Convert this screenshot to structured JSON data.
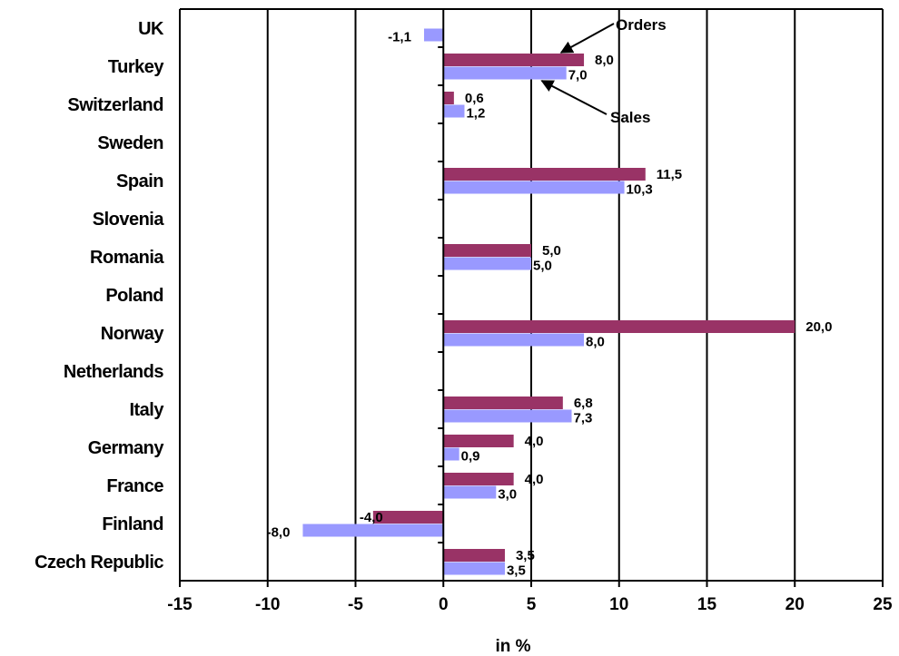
{
  "chart_data": {
    "type": "bar",
    "orientation": "horizontal",
    "categories": [
      "UK",
      "Turkey",
      "Switzerland",
      "Sweden",
      "Spain",
      "Slovenia",
      "Romania",
      "Poland",
      "Norway",
      "Netherlands",
      "Italy",
      "Germany",
      "France",
      "Finland",
      "Czech Republic"
    ],
    "series": [
      {
        "name": "Orders",
        "color": "#993366",
        "values": [
          null,
          8.0,
          0.6,
          null,
          11.5,
          null,
          5.0,
          null,
          20.0,
          null,
          6.8,
          4.0,
          4.0,
          -4.0,
          3.5
        ],
        "labels": [
          null,
          "8,0",
          "0,6",
          null,
          "11,5",
          null,
          "5,0",
          null,
          "20,0",
          null,
          "6,8",
          "4,0",
          "4,0",
          "-4,0",
          "3,5"
        ]
      },
      {
        "name": "Sales",
        "color": "#9999ff",
        "values": [
          -1.1,
          7.0,
          1.2,
          null,
          10.3,
          null,
          5.0,
          null,
          8.0,
          null,
          7.3,
          0.9,
          3.0,
          -8.0,
          3.5
        ],
        "labels": [
          "-1,1",
          "7,0",
          "1,2",
          null,
          "10,3",
          null,
          "5,0",
          null,
          "8,0",
          null,
          "7,3",
          "0,9",
          "3,0",
          "-8,0",
          "3,5"
        ]
      }
    ],
    "xlim": [
      -15,
      25
    ],
    "xticks": [
      -15,
      -10,
      -5,
      0,
      5,
      10,
      15,
      20,
      25
    ],
    "xtick_labels": [
      "-15",
      "-10",
      "-5",
      "0",
      "5",
      "10",
      "15",
      "20",
      "25"
    ],
    "xlabel": "in %",
    "ylabel": "",
    "title": "",
    "grid": "vertical",
    "legend": "none",
    "annotations": [
      {
        "text": "Orders",
        "series": "Orders",
        "category": "Turkey"
      },
      {
        "text": "Sales",
        "series": "Sales",
        "category": "Turkey"
      }
    ]
  }
}
